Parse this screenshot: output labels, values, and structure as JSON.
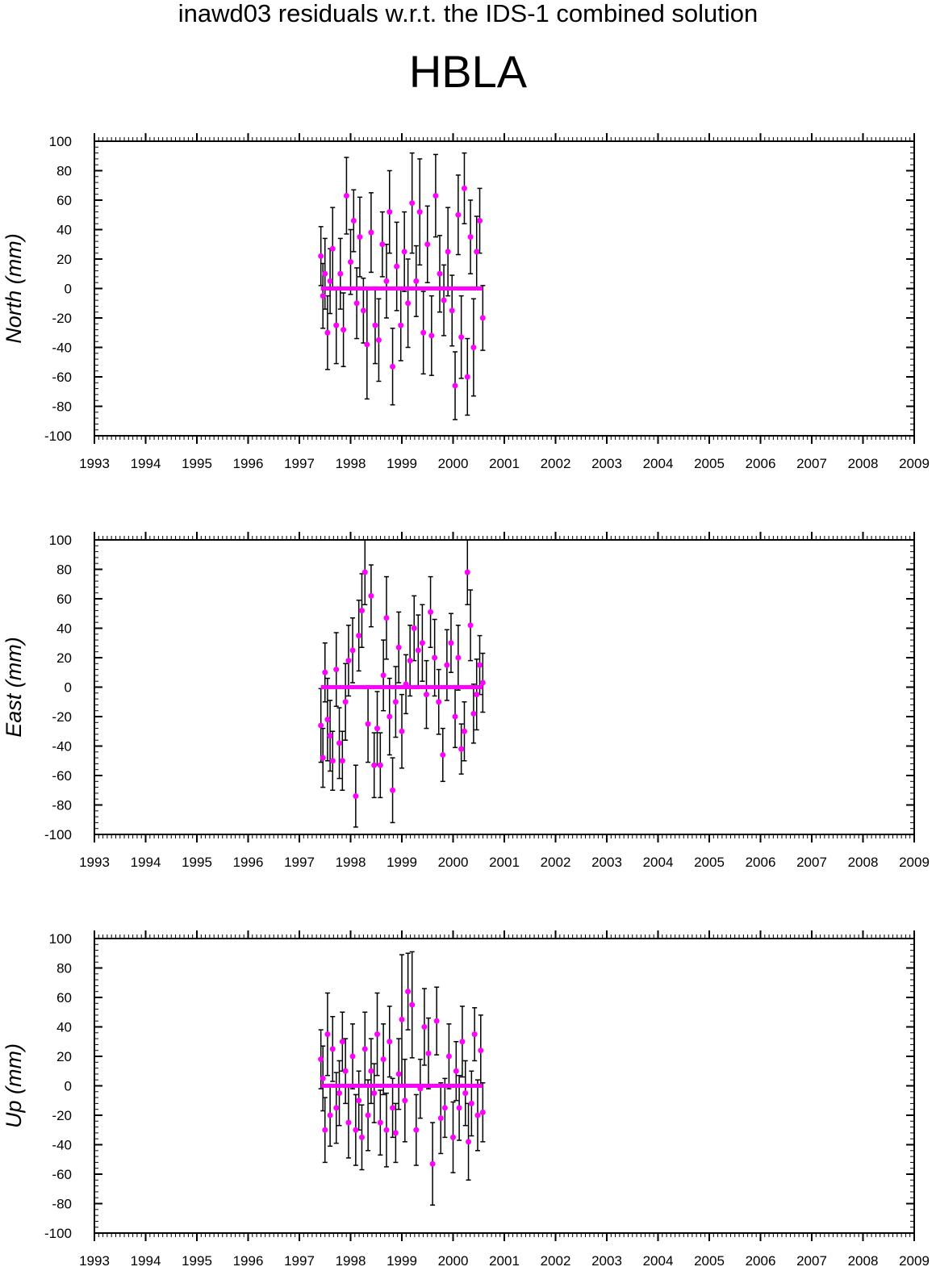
{
  "page": {
    "title": "inawd03 residuals w.r.t. the IDS-1 combined solution",
    "subtitle": "HBLA"
  },
  "colors": {
    "points": "#ff00ff",
    "errorbars": "#000000",
    "axes": "#000000"
  },
  "chart_data": [
    {
      "type": "scatter",
      "ylabel": "North (mm)",
      "xlim": [
        1993,
        2009
      ],
      "ylim": [
        -100,
        100
      ],
      "xticks": [
        "1993",
        "1994",
        "1995",
        "1996",
        "1997",
        "1998",
        "1999",
        "2000",
        "2001",
        "2002",
        "2003",
        "2004",
        "2005",
        "2006",
        "2007",
        "2008",
        "2009"
      ],
      "yticks": [
        "-100",
        "-80",
        "-60",
        "-40",
        "-20",
        "0",
        "20",
        "40",
        "60",
        "80",
        "100"
      ],
      "series": [
        {
          "x": [
            1997.42,
            1997.46,
            1997.5,
            1997.55,
            1997.6,
            1997.65,
            1997.72,
            1997.8,
            1997.86,
            1997.92,
            1998.0,
            1998.06,
            1998.12,
            1998.18,
            1998.25,
            1998.32,
            1998.4,
            1998.48,
            1998.55,
            1998.62,
            1998.7,
            1998.76,
            1998.82,
            1998.9,
            1998.98,
            1999.05,
            1999.12,
            1999.2,
            1999.28,
            1999.35,
            1999.42,
            1999.5,
            1999.58,
            1999.66,
            1999.74,
            1999.82,
            1999.9,
            1999.98,
            2000.04,
            2000.1,
            2000.16,
            2000.22,
            2000.28,
            2000.34,
            2000.4,
            2000.46,
            2000.52,
            2000.58
          ],
          "y": [
            22,
            -5,
            10,
            -30,
            5,
            27,
            -25,
            10,
            -28,
            63,
            18,
            46,
            -10,
            35,
            -15,
            -38,
            38,
            -25,
            -35,
            30,
            5,
            52,
            -53,
            15,
            -25,
            25,
            -10,
            58,
            5,
            52,
            -30,
            30,
            -32,
            63,
            10,
            -8,
            25,
            -15,
            -66,
            50,
            -33,
            68,
            -60,
            35,
            -40,
            25,
            46,
            -20
          ],
          "err": [
            20,
            22,
            24,
            25,
            22,
            28,
            26,
            24,
            25,
            26,
            22,
            21,
            24,
            27,
            22,
            37,
            27,
            26,
            28,
            22,
            25,
            28,
            26,
            30,
            24,
            27,
            30,
            34,
            24,
            36,
            28,
            26,
            27,
            28,
            26,
            24,
            30,
            24,
            23,
            27,
            28,
            24,
            26,
            25,
            33,
            24,
            22,
            22
          ]
        }
      ]
    },
    {
      "type": "scatter",
      "ylabel": "East (mm)",
      "xlim": [
        1993,
        2009
      ],
      "ylim": [
        -100,
        100
      ],
      "xticks": [
        "1993",
        "1994",
        "1995",
        "1996",
        "1997",
        "1998",
        "1999",
        "2000",
        "2001",
        "2002",
        "2003",
        "2004",
        "2005",
        "2006",
        "2007",
        "2008",
        "2009"
      ],
      "yticks": [
        "-100",
        "-80",
        "-60",
        "-40",
        "-20",
        "0",
        "20",
        "40",
        "60",
        "80",
        "100"
      ],
      "series": [
        {
          "x": [
            1997.42,
            1997.46,
            1997.5,
            1997.55,
            1997.6,
            1997.65,
            1997.72,
            1997.78,
            1997.84,
            1997.9,
            1997.96,
            1998.04,
            1998.1,
            1998.16,
            1998.22,
            1998.28,
            1998.34,
            1998.4,
            1998.46,
            1998.52,
            1998.58,
            1998.64,
            1998.7,
            1998.76,
            1998.82,
            1998.88,
            1998.94,
            1999.0,
            1999.08,
            1999.16,
            1999.24,
            1999.32,
            1999.4,
            1999.48,
            1999.56,
            1999.64,
            1999.72,
            1999.8,
            1999.88,
            1999.96,
            2000.04,
            2000.1,
            2000.16,
            2000.22,
            2000.28,
            2000.34,
            2000.4,
            2000.46,
            2000.52,
            2000.58
          ],
          "y": [
            -26,
            -48,
            10,
            -22,
            -33,
            -50,
            12,
            -38,
            -50,
            -10,
            18,
            25,
            -74,
            35,
            52,
            78,
            -25,
            62,
            -53,
            -28,
            -53,
            8,
            47,
            -20,
            -70,
            -10,
            27,
            -30,
            2,
            18,
            40,
            25,
            30,
            -5,
            51,
            20,
            -10,
            -46,
            15,
            30,
            -20,
            20,
            -42,
            -30,
            78,
            42,
            -18,
            -5,
            15,
            3
          ],
          "err": [
            25,
            20,
            20,
            28,
            24,
            20,
            25,
            24,
            20,
            26,
            24,
            22,
            21,
            24,
            25,
            22,
            26,
            21,
            22,
            25,
            22,
            24,
            28,
            26,
            22,
            24,
            24,
            25,
            20,
            24,
            22,
            24,
            26,
            23,
            24,
            26,
            22,
            18,
            24,
            20,
            21,
            22,
            17,
            20,
            22,
            24,
            20,
            24,
            20,
            20
          ]
        }
      ]
    },
    {
      "type": "scatter",
      "ylabel": "Up (mm)",
      "xlim": [
        1993,
        2009
      ],
      "ylim": [
        -100,
        100
      ],
      "xticks": [
        "1993",
        "1994",
        "1995",
        "1996",
        "1997",
        "1998",
        "1999",
        "2000",
        "2001",
        "2002",
        "2003",
        "2004",
        "2005",
        "2006",
        "2007",
        "2008",
        "2009"
      ],
      "yticks": [
        "-100",
        "-80",
        "-60",
        "-40",
        "-20",
        "0",
        "20",
        "40",
        "60",
        "80",
        "100"
      ],
      "series": [
        {
          "x": [
            1997.42,
            1997.46,
            1997.5,
            1997.55,
            1997.6,
            1997.65,
            1997.72,
            1997.78,
            1997.84,
            1997.9,
            1997.96,
            1998.04,
            1998.1,
            1998.16,
            1998.22,
            1998.28,
            1998.34,
            1998.4,
            1998.46,
            1998.52,
            1998.58,
            1998.64,
            1998.7,
            1998.76,
            1998.82,
            1998.88,
            1998.94,
            1999.0,
            1999.06,
            1999.12,
            1999.2,
            1999.28,
            1999.36,
            1999.44,
            1999.52,
            1999.6,
            1999.68,
            1999.76,
            1999.84,
            1999.92,
            2000.0,
            2000.06,
            2000.12,
            2000.18,
            2000.24,
            2000.3,
            2000.36,
            2000.42,
            2000.48,
            2000.54,
            2000.58
          ],
          "y": [
            18,
            5,
            -30,
            35,
            -20,
            25,
            -15,
            -5,
            30,
            10,
            -25,
            20,
            -30,
            -10,
            -35,
            25,
            -20,
            10,
            -5,
            35,
            -25,
            18,
            -30,
            30,
            -15,
            -32,
            8,
            45,
            -10,
            64,
            55,
            -30,
            -2,
            40,
            22,
            -53,
            44,
            -22,
            -15,
            20,
            -35,
            10,
            -15,
            30,
            -5,
            -38,
            -12,
            35,
            -20,
            24,
            -18
          ],
          "err": [
            20,
            22,
            22,
            28,
            21,
            22,
            24,
            22,
            20,
            22,
            24,
            22,
            24,
            20,
            22,
            25,
            24,
            22,
            20,
            28,
            22,
            24,
            25,
            24,
            20,
            20,
            24,
            44,
            28,
            26,
            36,
            24,
            20,
            26,
            24,
            28,
            23,
            24,
            20,
            22,
            24,
            20,
            22,
            24,
            22,
            26,
            22,
            18,
            24,
            24,
            20
          ]
        }
      ]
    }
  ]
}
